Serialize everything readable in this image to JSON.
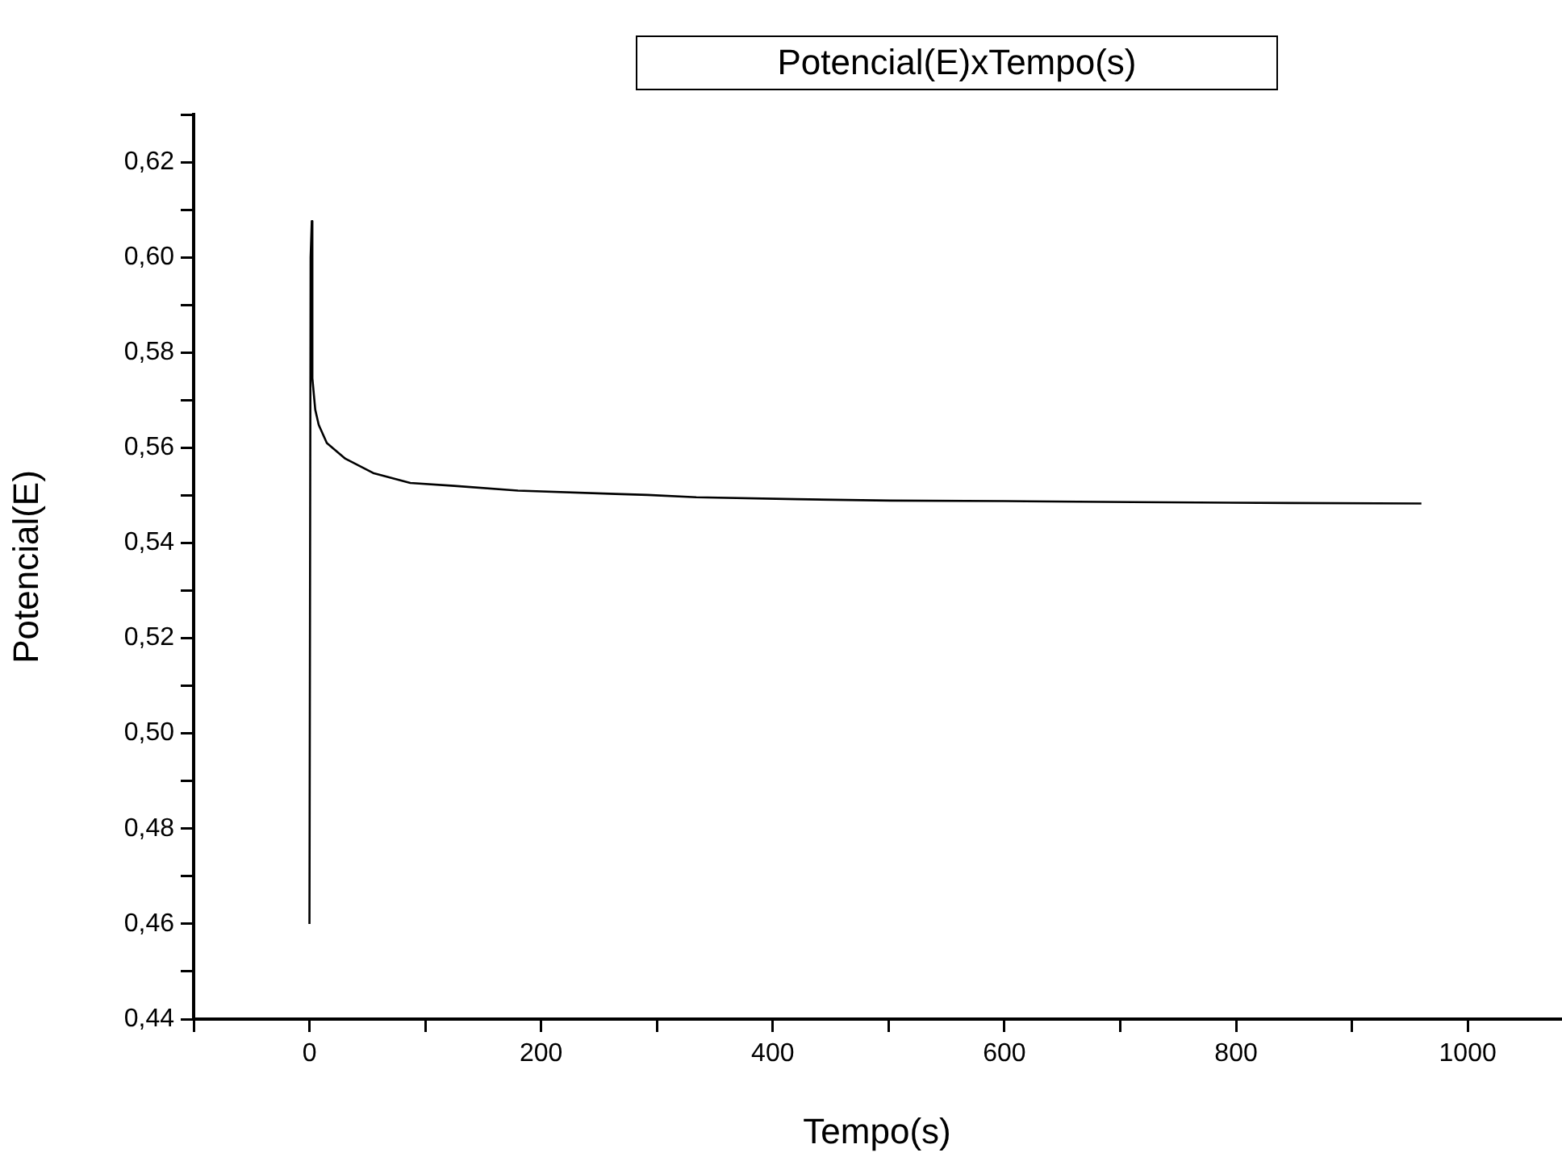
{
  "chart_data": {
    "type": "line",
    "title": "Potencial(E)xTempo(s)",
    "xlabel": "Tempo(s)",
    "ylabel": "Potencial(E)",
    "x": [
      0,
      1,
      2,
      2.5,
      5,
      8,
      15,
      31,
      55,
      87,
      125,
      180,
      264,
      292,
      334,
      420,
      501,
      600,
      710,
      845,
      960
    ],
    "series": [
      {
        "color": "#000000",
        "values": [
          0.46,
          0.6,
          0.6076,
          0.5746,
          0.568,
          0.5648,
          0.561,
          0.5577,
          0.5547,
          0.5526,
          0.552,
          0.551,
          0.5503,
          0.5501,
          0.5496,
          0.5492,
          0.5489,
          0.5488,
          0.5486,
          0.5484,
          0.5483
        ]
      }
    ],
    "xlim": [
      -100,
      1080
    ],
    "xticks": [
      {
        "value": -100,
        "label": null
      },
      0,
      {
        "value": 100,
        "label": null
      },
      200,
      {
        "value": 300,
        "label": null
      },
      400,
      {
        "value": 500,
        "label": null
      },
      600,
      {
        "value": 700,
        "label": null
      },
      800,
      {
        "value": 900,
        "label": null
      },
      1000
    ],
    "ylim": [
      0.44,
      0.63
    ],
    "yticks": [
      {
        "value": 0.44,
        "label": "0,44"
      },
      {
        "value": 0.45,
        "label": null
      },
      {
        "value": 0.46,
        "label": "0,46"
      },
      {
        "value": 0.47,
        "label": null
      },
      {
        "value": 0.48,
        "label": "0,48"
      },
      {
        "value": 0.49,
        "label": null
      },
      {
        "value": 0.5,
        "label": "0,50"
      },
      {
        "value": 0.51,
        "label": null
      },
      {
        "value": 0.52,
        "label": "0,52"
      },
      {
        "value": 0.53,
        "label": null
      },
      {
        "value": 0.54,
        "label": "0,54"
      },
      {
        "value": 0.55,
        "label": null
      },
      {
        "value": 0.56,
        "label": "0,56"
      },
      {
        "value": 0.57,
        "label": null
      },
      {
        "value": 0.58,
        "label": "0,58"
      },
      {
        "value": 0.59,
        "label": null
      },
      {
        "value": 0.6,
        "label": "0,60"
      },
      {
        "value": 0.61,
        "label": null
      },
      {
        "value": 0.62,
        "label": "0,62"
      },
      {
        "value": 0.63,
        "label": null
      }
    ],
    "grid": false,
    "legend": false,
    "marker": "none",
    "line_style": "solid"
  }
}
